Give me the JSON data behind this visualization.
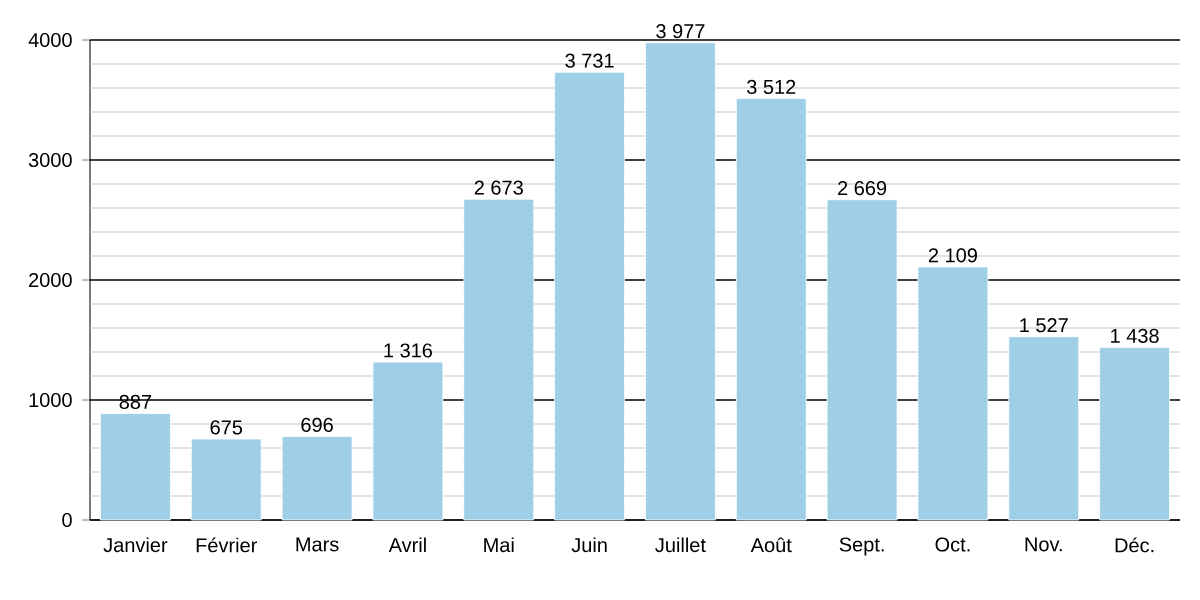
{
  "chart_data": {
    "type": "bar",
    "categories": [
      "Janvier",
      "Février",
      "Mars",
      "Avril",
      "Mai",
      "Juin",
      "Juillet",
      "Août",
      "Sept.",
      "Oct.",
      "Nov.",
      "Déc."
    ],
    "values": [
      887,
      675,
      696,
      1316,
      2673,
      3731,
      3977,
      3512,
      2669,
      2109,
      1527,
      1438
    ],
    "value_labels": [
      "887",
      "675",
      "696",
      "1 316",
      "2 673",
      "3 731",
      "3 977",
      "3 512",
      "2 669",
      "2 109",
      "1 527",
      "1 438"
    ],
    "color": "#9ecfe6",
    "ylim": [
      0,
      4000
    ],
    "yticks": [
      0,
      {
        "value": 200,
        "label": null
      },
      {
        "value": 400,
        "label": null
      },
      {
        "value": 600,
        "label": null
      },
      {
        "value": 800,
        "label": null
      },
      1000,
      {
        "value": 1200,
        "label": null
      },
      {
        "value": 1400,
        "label": null
      },
      {
        "value": 1600,
        "label": null
      },
      {
        "value": 1800,
        "label": null
      },
      2000,
      {
        "value": 2200,
        "label": null
      },
      {
        "value": 2400,
        "label": null
      },
      {
        "value": 2600,
        "label": null
      },
      {
        "value": 2800,
        "label": null
      },
      3000,
      {
        "value": 3200,
        "label": null
      },
      {
        "value": 3400,
        "label": null
      },
      {
        "value": 3600,
        "label": null
      },
      {
        "value": 3800,
        "label": null
      },
      4000
    ],
    "grid": "y"
  }
}
